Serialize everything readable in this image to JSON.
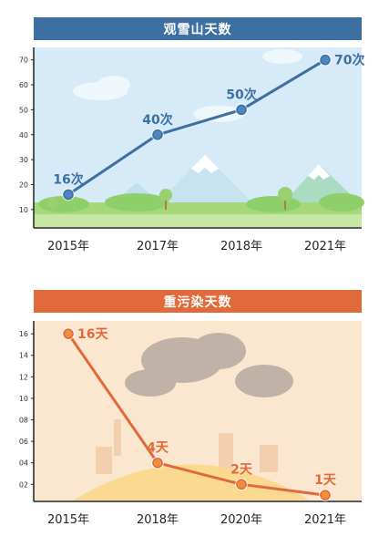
{
  "colors": {
    "blue": "#3d6fa3",
    "blue_point": "#4f86c0",
    "sky": "#d6ebf7",
    "grass": "#8fcf6a",
    "orange": "#e06a3a",
    "orange_point": "#f08e3a",
    "peach": "#fbe6cf",
    "smog": "#b7a9a2"
  },
  "chart_data": [
    {
      "type": "line",
      "title": "观雪山天数",
      "categories": [
        "2015年",
        "2017年",
        "2018年",
        "2021年"
      ],
      "values": [
        16,
        40,
        50,
        70
      ],
      "data_labels": [
        "16次",
        "40次",
        "50次",
        "70次"
      ],
      "yticks": [
        "10",
        "20",
        "30",
        "40",
        "50",
        "60",
        "70"
      ],
      "ylim": [
        3,
        75
      ],
      "grid": false
    },
    {
      "type": "line",
      "title": "重污染天数",
      "categories": [
        "2015年",
        "2018年",
        "2020年",
        "2021年"
      ],
      "values": [
        16,
        4,
        2,
        1
      ],
      "data_labels": [
        "16天",
        "4天",
        "2天",
        "1天"
      ],
      "yticks": [
        "02",
        "04",
        "06",
        "08",
        "10",
        "12",
        "14",
        "16"
      ],
      "ylim": [
        0.5,
        17.2
      ],
      "grid": false
    }
  ]
}
